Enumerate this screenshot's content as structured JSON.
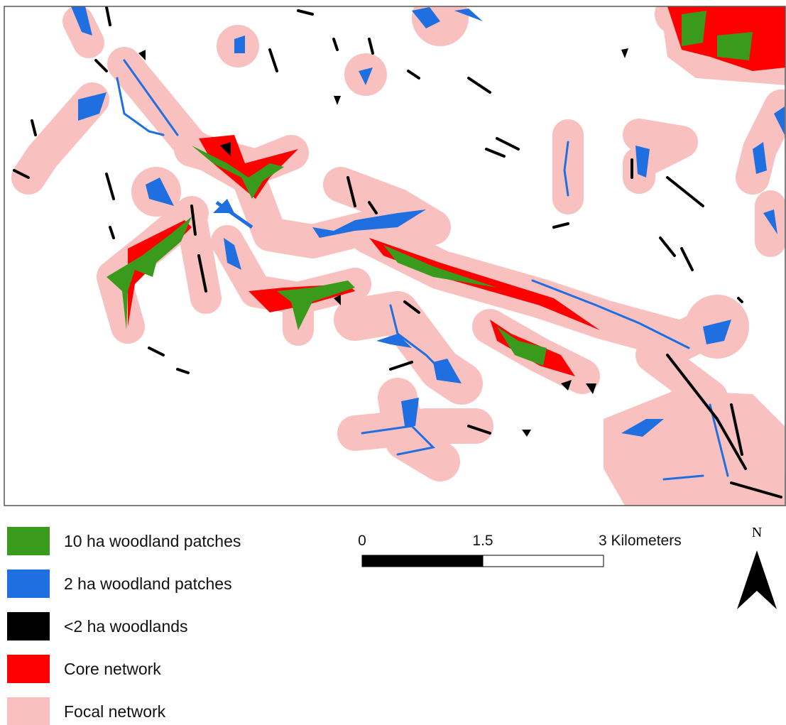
{
  "legend": {
    "items": [
      {
        "label": "10 ha woodland patches",
        "color": "#3a9a1c"
      },
      {
        "label": "2 ha woodland patches",
        "color": "#1f6fe0"
      },
      {
        "label": "<2 ha woodlands",
        "color": "#000000"
      },
      {
        "label": "Core network",
        "color": "#ff0000"
      },
      {
        "label": "Focal network",
        "color": "#f9c0c0"
      }
    ]
  },
  "scale_bar": {
    "labels": [
      "0",
      "1.5",
      "3 Kilometers"
    ]
  },
  "north_arrow": {
    "label": "N"
  }
}
